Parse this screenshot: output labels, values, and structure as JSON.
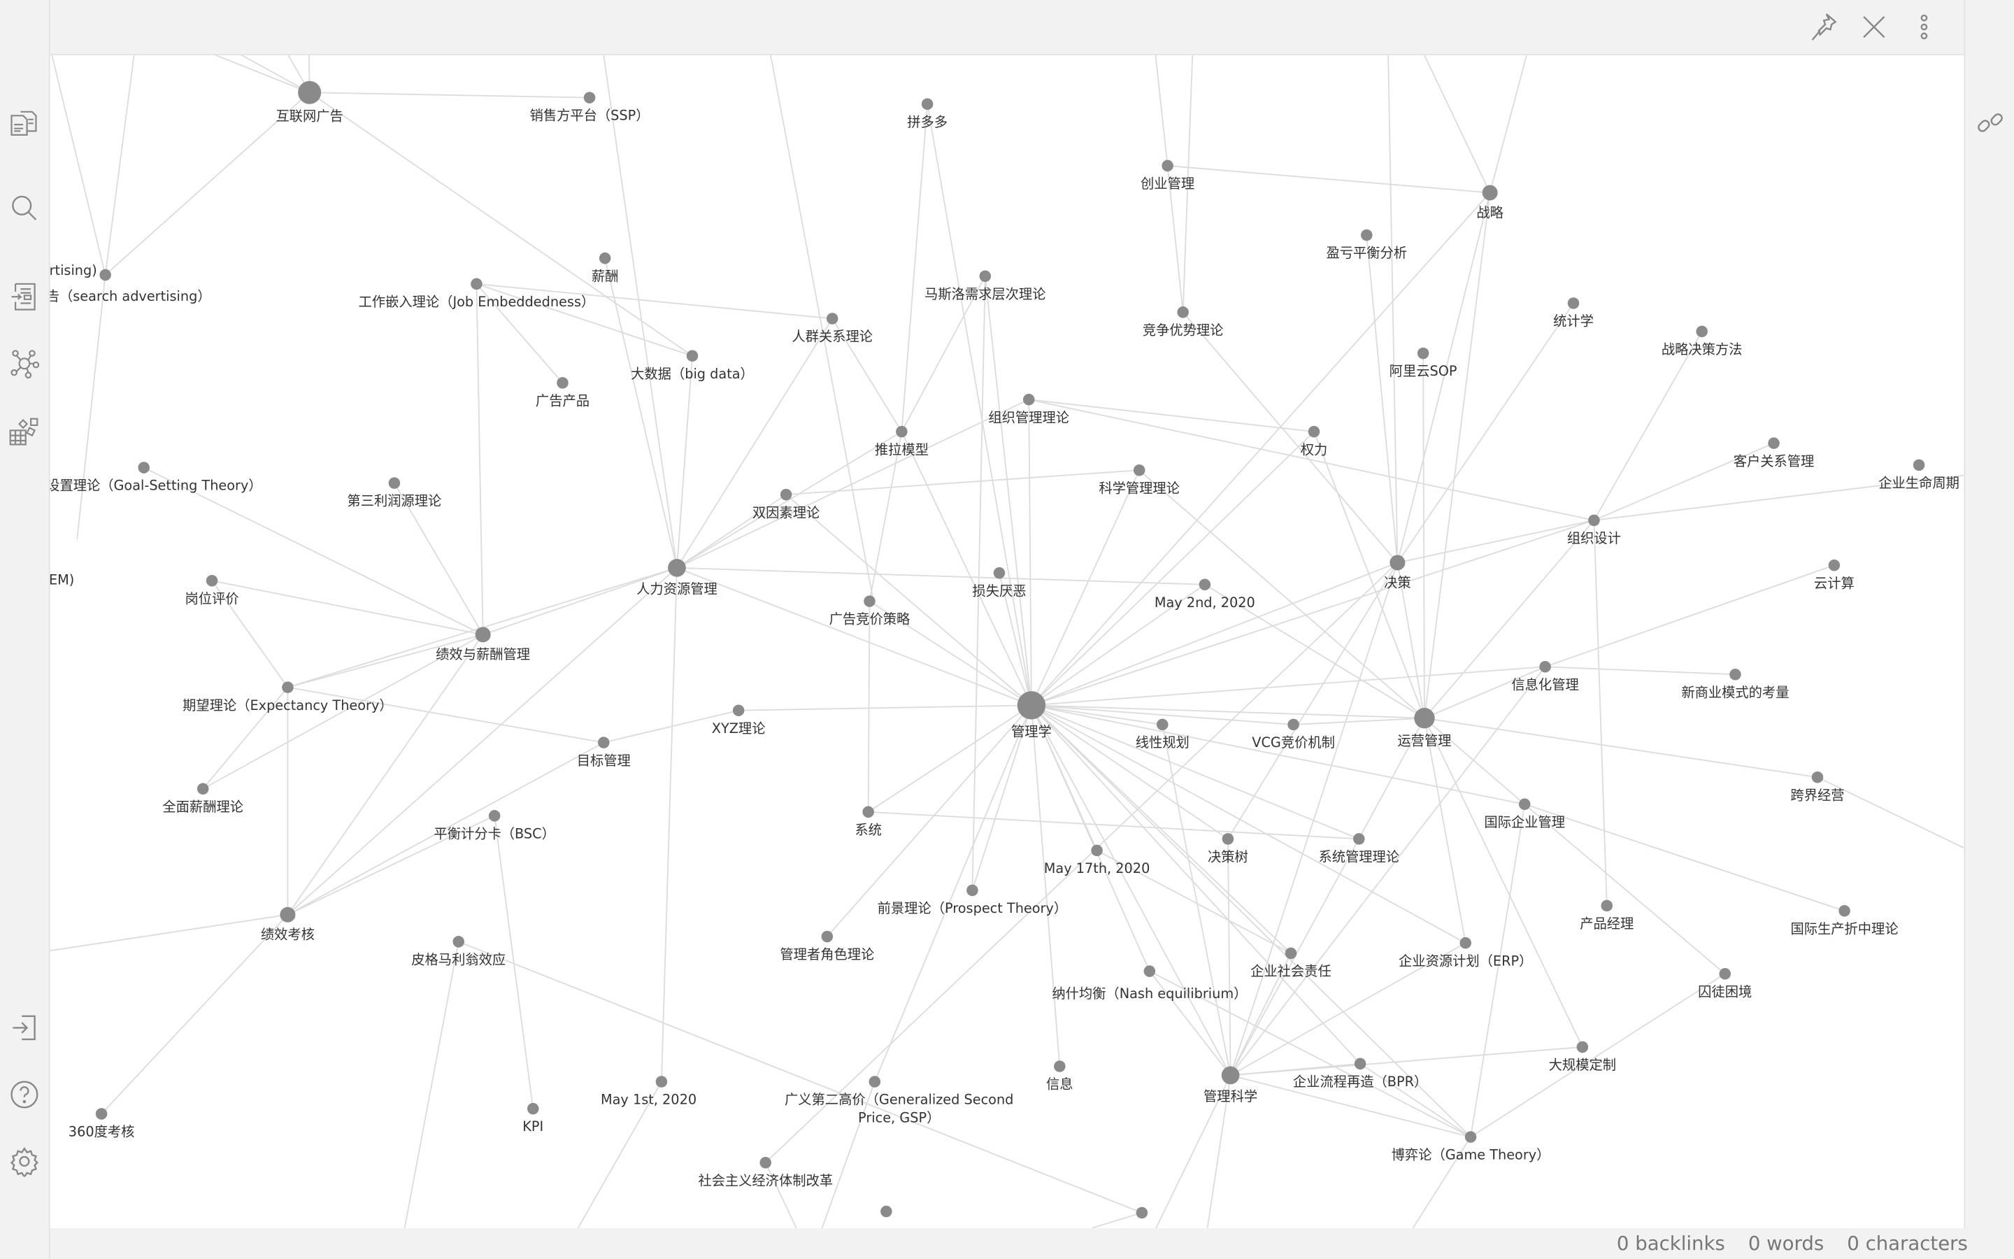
{
  "ribbon": {
    "top_icons": [
      "files-icon",
      "search-icon",
      "outline-icon",
      "graph-icon",
      "plugins-icon"
    ],
    "bottom_icons": [
      "open-vault-icon",
      "help-icon",
      "settings-icon"
    ]
  },
  "header": {
    "actions": [
      "pin-icon",
      "close-icon",
      "more-options-icon"
    ]
  },
  "right_sidebar": {
    "icon": "link-icon"
  },
  "graph": {
    "node_color": "#8a8a8a",
    "edge_color": "#dcdcdc",
    "nodes": [
      "互联网广告",
      "销售方平台（SSP）",
      "拼多多",
      "创业管理",
      "战略",
      "盈亏平衡分析",
      "告（search advertising）",
      "薪酬",
      "工作嵌入理论（Job Embeddedness）",
      "马斯洛需求层次理论",
      "人群关系理论",
      "竞争优势理论",
      "统计学",
      "战略决策方法",
      "阿里云SOP",
      "大数据（big data）",
      "广告产品",
      "组织管理理论",
      "推拉模型",
      "权力",
      "客户关系管理",
      "企业生命周期",
      "设置理论（Goal-Setting Theory）",
      "第三利润源理论",
      "科学管理理论",
      "双因素理论",
      "组织设计",
      "云计算",
      "EM)",
      "岗位评价",
      "人力资源管理",
      "损失厌恶",
      "May 2nd, 2020",
      "决策",
      "广告竞价策略",
      "绩效与薪酬管理",
      "信息化管理",
      "新商业模式的考量",
      "期望理论（Expectancy Theory）",
      "管理学",
      "XYZ理论",
      "线性规划",
      "VCG竞价机制",
      "运营管理",
      "目标管理",
      "跨界经营",
      "全面薪酬理论",
      "国际企业管理",
      "系统",
      "平衡计分卡（BSC）",
      "决策树",
      "系统管理理论",
      "May 17th, 2020",
      "前景理论（Prospect Theory）",
      "产品经理",
      "国际生产折中理论",
      "绩效考核",
      "管理者角色理论",
      "皮格马利翁效应",
      "企业社会责任",
      "企业资源计划（ERP）",
      "纳什均衡（Nash equilibrium）",
      "囚徒困境",
      "大规模定制",
      "企业流程再造（BPR）",
      "信息",
      "管理科学",
      "May 1st, 2020",
      "广义第二高价（Generalized Second|Price, GSP）",
      "360度考核",
      "KPI",
      "博弈论（Game Theory）",
      "社会主义经济体制改革",
      "",
      ""
    ],
    "extra_labels": [
      "rtising)"
    ]
  },
  "status": {
    "backlinks": "0 backlinks",
    "words": "0 words",
    "characters": "0 characters"
  }
}
